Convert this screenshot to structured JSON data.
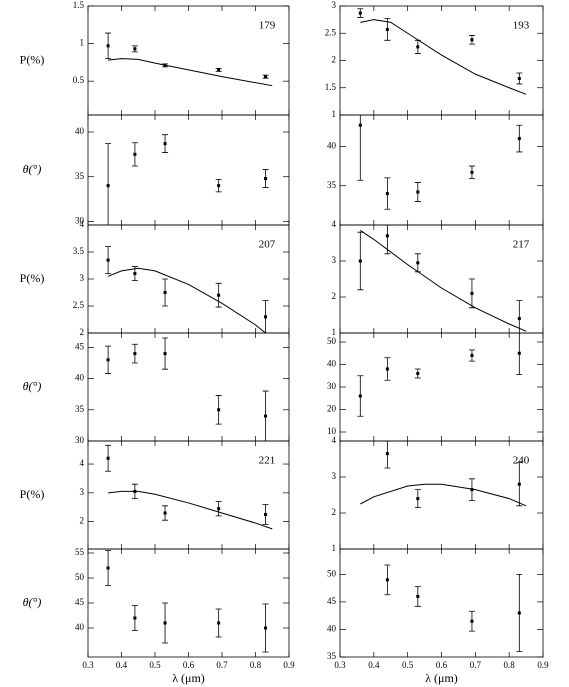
{
  "chart_data": [
    {
      "type": "scatter",
      "annotation": "179",
      "ylabel": "P(%)",
      "xlim": [
        0.3,
        0.9
      ],
      "xticks": [
        0.3,
        0.4,
        0.5,
        0.6,
        0.7,
        0.8,
        0.9
      ],
      "ylim": [
        0.05,
        1.5
      ],
      "yticks": [
        0.5,
        1,
        1.5
      ],
      "points": {
        "x": [
          0.36,
          0.44,
          0.53,
          0.69,
          0.83
        ],
        "values": [
          0.97,
          0.93,
          0.71,
          0.65,
          0.56
        ],
        "errors": [
          0.17,
          0.04,
          0.02,
          0.02,
          0.02
        ]
      },
      "curve": {
        "x": [
          0.36,
          0.4,
          0.45,
          0.5,
          0.6,
          0.7,
          0.8,
          0.85
        ],
        "values": [
          0.78,
          0.8,
          0.79,
          0.74,
          0.65,
          0.56,
          0.48,
          0.44
        ]
      }
    },
    {
      "type": "scatter",
      "annotation": "193",
      "xlim": [
        0.3,
        0.9
      ],
      "xticks": [
        0.3,
        0.4,
        0.5,
        0.6,
        0.7,
        0.8,
        0.9
      ],
      "ylim": [
        1,
        3
      ],
      "yticks": [
        1,
        1.5,
        2,
        2.5,
        3
      ],
      "points": {
        "x": [
          0.36,
          0.44,
          0.53,
          0.69,
          0.83
        ],
        "values": [
          2.87,
          2.57,
          2.25,
          2.38,
          1.67
        ],
        "errors": [
          0.08,
          0.2,
          0.12,
          0.08,
          0.1
        ]
      },
      "curve": {
        "x": [
          0.36,
          0.4,
          0.45,
          0.5,
          0.6,
          0.7,
          0.8,
          0.85
        ],
        "values": [
          2.7,
          2.75,
          2.7,
          2.5,
          2.1,
          1.75,
          1.5,
          1.38
        ]
      }
    },
    {
      "type": "scatter",
      "ylabel": "θ(°)",
      "xlim": [
        0.3,
        0.9
      ],
      "xticks": [
        0.3,
        0.4,
        0.5,
        0.6,
        0.7,
        0.8,
        0.9
      ],
      "ylim": [
        29.6,
        41.9
      ],
      "yticks": [
        30,
        35,
        40
      ],
      "points": {
        "x": [
          0.36,
          0.44,
          0.53,
          0.69,
          0.83
        ],
        "values": [
          34,
          37.5,
          38.7,
          34,
          34.8
        ],
        "errors": [
          4.7,
          1.3,
          1,
          0.7,
          1
        ]
      }
    },
    {
      "type": "scatter",
      "xlim": [
        0.3,
        0.9
      ],
      "xticks": [
        0.3,
        0.4,
        0.5,
        0.6,
        0.7,
        0.8,
        0.9
      ],
      "ylim": [
        30,
        44
      ],
      "yticks": [
        35,
        40
      ],
      "points": {
        "x": [
          0.36,
          0.44,
          0.53,
          0.69,
          0.83
        ],
        "values": [
          42.7,
          34,
          34.2,
          36.7,
          41
        ],
        "errors": [
          7,
          2,
          1.2,
          0.8,
          1.7
        ]
      }
    },
    {
      "type": "scatter",
      "annotation": "207",
      "ylabel": "P(%)",
      "xlim": [
        0.3,
        0.9
      ],
      "xticks": [
        0.3,
        0.4,
        0.5,
        0.6,
        0.7,
        0.8,
        0.9
      ],
      "ylim": [
        2,
        4
      ],
      "yticks": [
        2,
        2.5,
        3,
        3.5,
        4
      ],
      "points": {
        "x": [
          0.36,
          0.44,
          0.53,
          0.69,
          0.83
        ],
        "values": [
          3.35,
          3.1,
          2.75,
          2.7,
          2.3
        ],
        "errors": [
          0.25,
          0.13,
          0.25,
          0.22,
          0.3
        ]
      },
      "curve": {
        "x": [
          0.36,
          0.4,
          0.45,
          0.5,
          0.6,
          0.7,
          0.8,
          0.83
        ],
        "values": [
          3.05,
          3.15,
          3.2,
          3.15,
          2.9,
          2.55,
          2.15,
          2.0
        ]
      }
    },
    {
      "type": "scatter",
      "annotation": "217",
      "xlim": [
        0.3,
        0.9
      ],
      "xticks": [
        0.3,
        0.4,
        0.5,
        0.6,
        0.7,
        0.8,
        0.9
      ],
      "ylim": [
        1,
        4
      ],
      "yticks": [
        1,
        2,
        3,
        4
      ],
      "points": {
        "x": [
          0.36,
          0.44,
          0.53,
          0.69,
          0.83
        ],
        "values": [
          3,
          3.7,
          2.95,
          2.1,
          1.4
        ],
        "errors": [
          0.8,
          0.5,
          0.25,
          0.4,
          0.5
        ]
      },
      "curve": {
        "x": [
          0.36,
          0.4,
          0.5,
          0.6,
          0.7,
          0.8,
          0.85
        ],
        "values": [
          3.85,
          3.6,
          2.9,
          2.25,
          1.7,
          1.25,
          1.05
        ]
      }
    },
    {
      "type": "scatter",
      "ylabel": "θ(°)",
      "xlim": [
        0.3,
        0.9
      ],
      "xticks": [
        0.3,
        0.4,
        0.5,
        0.6,
        0.7,
        0.8,
        0.9
      ],
      "ylim": [
        30,
        47.3
      ],
      "yticks": [
        30,
        35,
        40,
        45
      ],
      "points": {
        "x": [
          0.36,
          0.44,
          0.53,
          0.69,
          0.83
        ],
        "values": [
          43,
          44,
          44,
          35,
          34
        ],
        "errors": [
          2.2,
          1.5,
          2.5,
          2.3,
          4
        ]
      }
    },
    {
      "type": "scatter",
      "xlim": [
        0.3,
        0.9
      ],
      "xticks": [
        0.3,
        0.4,
        0.5,
        0.6,
        0.7,
        0.8,
        0.9
      ],
      "ylim": [
        6,
        54
      ],
      "yticks": [
        10,
        20,
        30,
        40,
        50
      ],
      "points": {
        "x": [
          0.36,
          0.44,
          0.53,
          0.69,
          0.83
        ],
        "values": [
          26,
          38,
          36,
          44,
          45
        ],
        "errors": [
          9,
          5,
          2,
          2.5,
          9.5
        ]
      }
    },
    {
      "type": "scatter",
      "annotation": "221",
      "ylabel": "P(%)",
      "xlim": [
        0.3,
        0.9
      ],
      "xticks": [
        0.3,
        0.4,
        0.5,
        0.6,
        0.7,
        0.8,
        0.9
      ],
      "ylim": [
        1.05,
        4.8
      ],
      "yticks": [
        2,
        3,
        4
      ],
      "points": {
        "x": [
          0.36,
          0.44,
          0.53,
          0.69,
          0.83
        ],
        "values": [
          4.2,
          3.05,
          2.3,
          2.45,
          2.25
        ],
        "errors": [
          0.45,
          0.25,
          0.25,
          0.25,
          0.35
        ]
      },
      "curve": {
        "x": [
          0.36,
          0.4,
          0.45,
          0.5,
          0.6,
          0.7,
          0.8,
          0.85
        ],
        "values": [
          3.0,
          3.05,
          3.05,
          2.95,
          2.65,
          2.3,
          1.95,
          1.75
        ]
      }
    },
    {
      "type": "scatter",
      "annotation": "240",
      "xlim": [
        0.3,
        0.9
      ],
      "xticks": [
        0.3,
        0.4,
        0.5,
        0.6,
        0.7,
        0.8,
        0.9
      ],
      "ylim": [
        1,
        4
      ],
      "yticks": [
        1,
        2,
        3,
        4
      ],
      "points": {
        "x": [
          0.44,
          0.53,
          0.69,
          0.83
        ],
        "values": [
          3.65,
          2.4,
          2.65,
          2.8
        ],
        "errors": [
          0.4,
          0.25,
          0.3,
          0.6
        ]
      },
      "curve": {
        "x": [
          0.36,
          0.4,
          0.5,
          0.55,
          0.6,
          0.7,
          0.8,
          0.85
        ],
        "values": [
          2.25,
          2.45,
          2.75,
          2.8,
          2.8,
          2.65,
          2.4,
          2.2
        ]
      }
    },
    {
      "type": "scatter",
      "ylabel": "θ(°)",
      "xlabel": "λ (μm)",
      "xlim": [
        0.3,
        0.9
      ],
      "xticks": [
        0.3,
        0.4,
        0.5,
        0.6,
        0.7,
        0.8,
        0.9
      ],
      "ylim": [
        34.2,
        55.8
      ],
      "yticks": [
        40,
        45,
        50,
        55
      ],
      "points": {
        "x": [
          0.36,
          0.44,
          0.53,
          0.69,
          0.83
        ],
        "values": [
          52,
          42,
          41,
          41,
          40
        ],
        "errors": [
          3.5,
          2.5,
          4,
          2.8,
          4.8
        ]
      }
    },
    {
      "type": "scatter",
      "xlabel": "λ (μm)",
      "xlim": [
        0.3,
        0.9
      ],
      "xticks": [
        0.3,
        0.4,
        0.5,
        0.6,
        0.7,
        0.8,
        0.9
      ],
      "ylim": [
        35,
        54.6
      ],
      "yticks": [
        35,
        40,
        45,
        50
      ],
      "points": {
        "x": [
          0.44,
          0.53,
          0.69,
          0.83
        ],
        "values": [
          49,
          46,
          41.5,
          43
        ],
        "errors": [
          2.7,
          1.8,
          1.8,
          7
        ]
      }
    }
  ]
}
